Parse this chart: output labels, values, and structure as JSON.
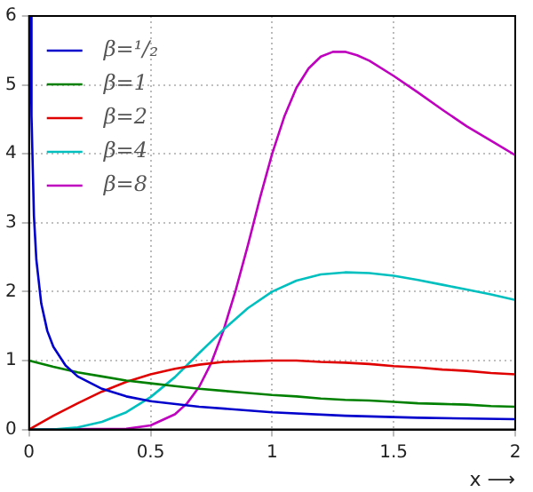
{
  "chart_data": {
    "type": "line",
    "xlabel": "x ⟶",
    "xlim": [
      0,
      2
    ],
    "ylim": [
      0,
      6
    ],
    "xticks": [
      0,
      0.5,
      1,
      1.5,
      2
    ],
    "yticks": [
      0,
      1,
      2,
      3,
      4,
      5,
      6
    ],
    "grid": true,
    "legend": "top left",
    "marker": "none",
    "line_style": "solid",
    "x": [
      0,
      0.1,
      0.2,
      0.3,
      0.4,
      0.5,
      0.6,
      0.7,
      0.8,
      0.9,
      1.0,
      1.1,
      1.2,
      1.3,
      1.4,
      1.5,
      1.6,
      1.7,
      1.8,
      1.9,
      2.0
    ],
    "series": [
      {
        "name": "β=¹/₂",
        "color": "#0000cc",
        "x": [
          0.006,
          0.01,
          0.02,
          0.03,
          0.05,
          0.075,
          0.1,
          0.15,
          0.2,
          0.3,
          0.4,
          0.5,
          0.7,
          1.0,
          1.3,
          1.6,
          2.0
        ],
        "values": [
          5.99,
          4.55,
          3.1,
          2.46,
          1.83,
          1.43,
          1.2,
          0.93,
          0.77,
          0.59,
          0.48,
          0.41,
          0.33,
          0.25,
          0.2,
          0.17,
          0.15
        ]
      },
      {
        "name": "β=1",
        "color": "#008000",
        "values": [
          1,
          0.91,
          0.83,
          0.77,
          0.71,
          0.67,
          0.63,
          0.59,
          0.56,
          0.53,
          0.5,
          0.48,
          0.45,
          0.43,
          0.42,
          0.4,
          0.38,
          0.37,
          0.36,
          0.34,
          0.33
        ]
      },
      {
        "name": "β=2",
        "color": "#e00000",
        "values": [
          0,
          0.2,
          0.38,
          0.55,
          0.69,
          0.8,
          0.88,
          0.94,
          0.98,
          0.99,
          1,
          1,
          0.98,
          0.97,
          0.95,
          0.92,
          0.9,
          0.87,
          0.85,
          0.82,
          0.8
        ]
      },
      {
        "name": "β=4",
        "color": "#00bfbf",
        "values": [
          0,
          0,
          0.03,
          0.11,
          0.25,
          0.47,
          0.76,
          1.11,
          1.45,
          1.76,
          2,
          2.16,
          2.25,
          2.28,
          2.27,
          2.23,
          2.17,
          2.1,
          2.03,
          1.96,
          1.88
        ]
      },
      {
        "name": "β=8",
        "color": "#bf00bf",
        "x": [
          0,
          0.4,
          0.5,
          0.6,
          0.65,
          0.7,
          0.75,
          0.8,
          0.85,
          0.9,
          0.95,
          1.0,
          1.05,
          1.1,
          1.15,
          1.2,
          1.25,
          1.3,
          1.35,
          1.4,
          1.5,
          1.6,
          1.7,
          1.8,
          1.9,
          2.0
        ],
        "values": [
          0,
          0.01,
          0.06,
          0.22,
          0.38,
          0.62,
          0.97,
          1.44,
          2.02,
          2.67,
          3.36,
          4,
          4.54,
          4.96,
          5.24,
          5.41,
          5.48,
          5.48,
          5.43,
          5.35,
          5.13,
          4.89,
          4.64,
          4.4,
          4.19,
          3.98
        ]
      }
    ]
  }
}
